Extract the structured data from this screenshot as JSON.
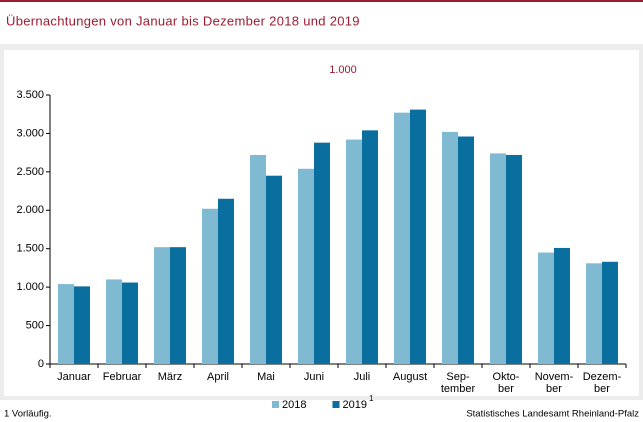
{
  "chart_data": {
    "type": "bar",
    "title": "Übernachtungen von Januar bis Dezember 2018 und 2019",
    "unit_label": "1.000",
    "categories": [
      "Januar",
      "Februar",
      "März",
      "April",
      "Mai",
      "Juni",
      "Juli",
      "August",
      "Sep-\ntember",
      "Okto-\nber",
      "Novem-\nber",
      "Dezem-\nber"
    ],
    "series": [
      {
        "name": "2018",
        "color": "#80b9d2",
        "values": [
          1040,
          1100,
          1520,
          2020,
          2720,
          2540,
          2920,
          3270,
          3020,
          2740,
          1450,
          1310
        ]
      },
      {
        "name": "2019",
        "color": "#0a6e9e",
        "values": [
          1010,
          1060,
          1520,
          2150,
          2450,
          2880,
          3040,
          3310,
          2960,
          2720,
          1510,
          1330
        ]
      }
    ],
    "legend_footnote_marker": "1",
    "ylim": [
      0,
      3500
    ],
    "yticks": [
      0,
      500,
      {
        "value": 1000,
        "label": "1.000"
      },
      {
        "value": 1500,
        "label": "1.500"
      },
      {
        "value": 2000,
        "label": "2.000"
      },
      {
        "value": 2500,
        "label": "2.500"
      },
      {
        "value": 3000,
        "label": "3.000"
      },
      {
        "value": 3500,
        "label": "3.500"
      }
    ],
    "grid": false,
    "footnote": "1 Vorläufig.",
    "source": "Statistisches Landesamt Rheinland-Pfalz"
  }
}
